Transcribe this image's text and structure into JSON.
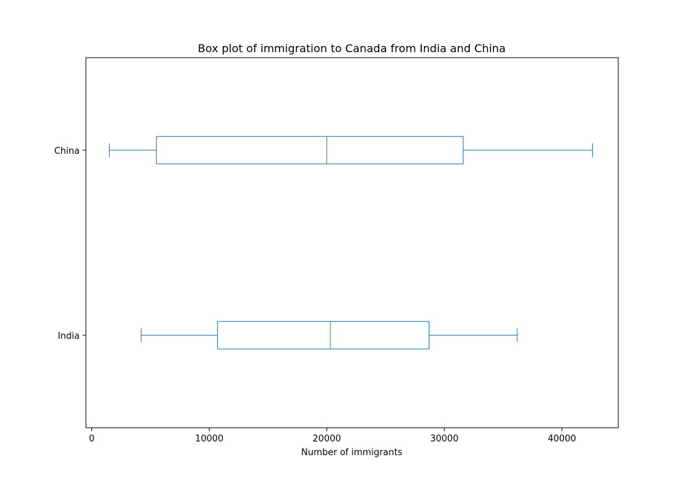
{
  "chart_data": {
    "type": "box",
    "orientation": "horizontal",
    "title": "Box plot of immigration to Canada from India and China",
    "xlabel": "Number of immigrants",
    "ylabel": "",
    "xlim": [
      -500,
      44800
    ],
    "xticks": [
      0,
      10000,
      20000,
      30000,
      40000
    ],
    "grid": false,
    "categories": [
      "India",
      "China"
    ],
    "boxes": [
      {
        "category": "India",
        "whisker_low": 4200,
        "q1": 10700,
        "median": 20300,
        "q3": 28700,
        "whisker_high": 36200
      },
      {
        "category": "China",
        "whisker_low": 1500,
        "q1": 5500,
        "median": 20000,
        "q3": 31600,
        "whisker_high": 42600
      }
    ],
    "colors": {
      "box": "#1f77b4",
      "median": "#2ca02c",
      "axes": "#000000"
    }
  }
}
